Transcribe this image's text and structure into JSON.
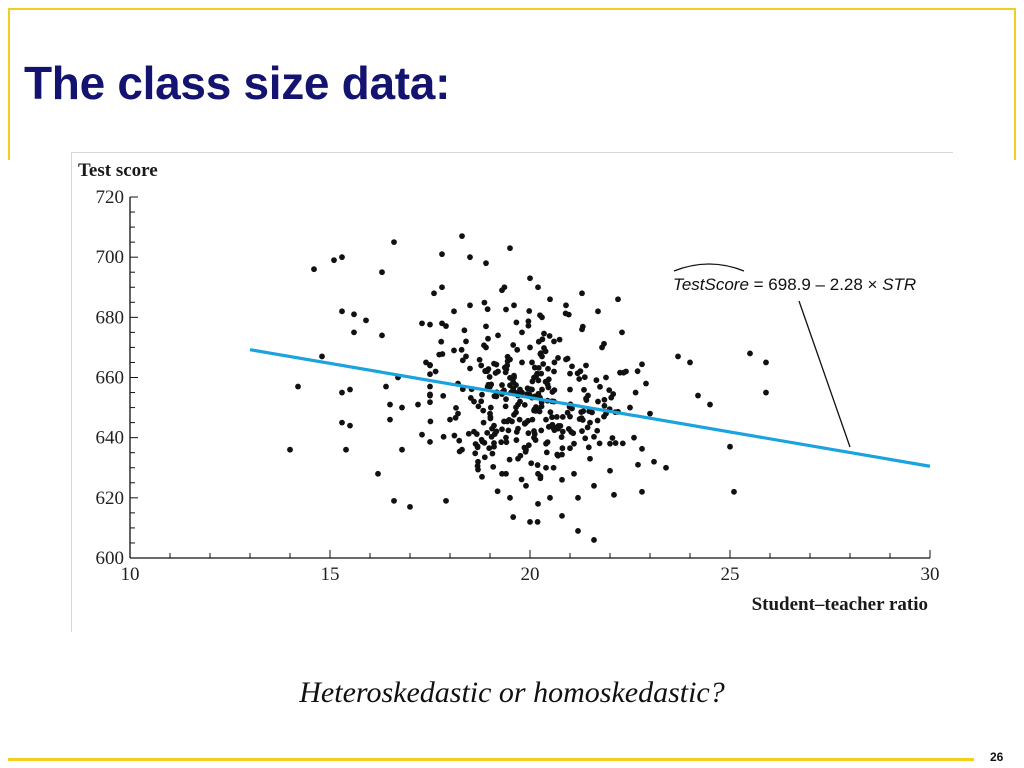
{
  "slide": {
    "title": "The class size data:",
    "question": "Heteroskedastic or homoskedastic?",
    "page_number": "26",
    "accent_color": "#f2cf1f",
    "title_color": "#141470"
  },
  "chart_data": {
    "type": "scatter",
    "title": "",
    "ylabel": "Test score",
    "xlabel": "Student–teacher ratio",
    "xlim": [
      10,
      30
    ],
    "ylim": [
      600,
      720
    ],
    "xticks": [
      10,
      15,
      20,
      25,
      30
    ],
    "yticks": [
      600,
      620,
      640,
      660,
      680,
      700,
      720
    ],
    "grid": false,
    "annotation": {
      "lhs": "TestScore",
      "rhs_a": " = 698.9 – 2.28 × ",
      "rhs_b": "STR"
    },
    "regression": {
      "intercept": 698.9,
      "slope": -2.28,
      "x_start": 13.0,
      "x_end": 30.0,
      "color": "#1aa3dd"
    },
    "point_color": "#111111",
    "points": [
      [
        14.0,
        636
      ],
      [
        14.2,
        657
      ],
      [
        14.6,
        696
      ],
      [
        14.8,
        667
      ],
      [
        15.1,
        699
      ],
      [
        15.3,
        700
      ],
      [
        15.3,
        682
      ],
      [
        15.3,
        655
      ],
      [
        15.3,
        645
      ],
      [
        15.4,
        636
      ],
      [
        15.5,
        644
      ],
      [
        15.5,
        656
      ],
      [
        15.6,
        681
      ],
      [
        15.6,
        675
      ],
      [
        15.9,
        679
      ],
      [
        16.2,
        628
      ],
      [
        16.3,
        695
      ],
      [
        16.3,
        674
      ],
      [
        16.4,
        657
      ],
      [
        16.5,
        651
      ],
      [
        16.5,
        646
      ],
      [
        16.6,
        705
      ],
      [
        16.6,
        619
      ],
      [
        16.7,
        660
      ],
      [
        16.8,
        636
      ],
      [
        16.8,
        650
      ],
      [
        17.0,
        617
      ],
      [
        17.2,
        651
      ],
      [
        17.3,
        641
      ],
      [
        17.3,
        678
      ],
      [
        17.4,
        665
      ],
      [
        17.5,
        654
      ],
      [
        17.6,
        688
      ],
      [
        17.8,
        701
      ],
      [
        17.8,
        690
      ],
      [
        17.8,
        678
      ],
      [
        17.9,
        619
      ],
      [
        18.0,
        646
      ],
      [
        18.1,
        682
      ],
      [
        18.1,
        669
      ],
      [
        18.2,
        658
      ],
      [
        18.2,
        648
      ],
      [
        18.3,
        707
      ],
      [
        18.3,
        636
      ],
      [
        18.4,
        667
      ],
      [
        18.5,
        700
      ],
      [
        18.5,
        684
      ],
      [
        18.5,
        663
      ],
      [
        18.6,
        652
      ],
      [
        18.6,
        642
      ],
      [
        18.7,
        632
      ],
      [
        18.8,
        627
      ],
      [
        18.9,
        698
      ],
      [
        18.9,
        677
      ],
      [
        18.9,
        670
      ],
      [
        19.0,
        657
      ],
      [
        19.0,
        648
      ],
      [
        19.1,
        644
      ],
      [
        19.1,
        637
      ],
      [
        19.2,
        662
      ],
      [
        19.2,
        674
      ],
      [
        19.3,
        689
      ],
      [
        19.3,
        655
      ],
      [
        19.4,
        640
      ],
      [
        19.4,
        628
      ],
      [
        19.5,
        620
      ],
      [
        19.5,
        703
      ],
      [
        19.5,
        666
      ],
      [
        19.6,
        684
      ],
      [
        19.6,
        660
      ],
      [
        19.7,
        651
      ],
      [
        19.7,
        643
      ],
      [
        19.7,
        633
      ],
      [
        19.8,
        675
      ],
      [
        19.8,
        665
      ],
      [
        19.8,
        655
      ],
      [
        19.9,
        645
      ],
      [
        19.9,
        636
      ],
      [
        19.9,
        624
      ],
      [
        20.0,
        612
      ],
      [
        20.0,
        693
      ],
      [
        20.0,
        670
      ],
      [
        20.1,
        660
      ],
      [
        20.1,
        649
      ],
      [
        20.1,
        640
      ],
      [
        20.2,
        628
      ],
      [
        20.2,
        618
      ],
      [
        20.2,
        690
      ],
      [
        20.3,
        680
      ],
      [
        20.3,
        667
      ],
      [
        20.3,
        656
      ],
      [
        20.4,
        646
      ],
      [
        20.4,
        638
      ],
      [
        20.4,
        630
      ],
      [
        20.5,
        620
      ],
      [
        20.5,
        686
      ],
      [
        20.6,
        672
      ],
      [
        20.6,
        662
      ],
      [
        20.6,
        652
      ],
      [
        20.7,
        643
      ],
      [
        20.7,
        634
      ],
      [
        20.8,
        626
      ],
      [
        20.8,
        614
      ],
      [
        20.9,
        684
      ],
      [
        20.9,
        666
      ],
      [
        21.0,
        656
      ],
      [
        21.0,
        647
      ],
      [
        21.1,
        638
      ],
      [
        21.1,
        628
      ],
      [
        21.2,
        620
      ],
      [
        21.2,
        609
      ],
      [
        21.3,
        688
      ],
      [
        21.3,
        676
      ],
      [
        21.4,
        664
      ],
      [
        21.4,
        653
      ],
      [
        21.5,
        645
      ],
      [
        21.5,
        633
      ],
      [
        21.6,
        624
      ],
      [
        21.6,
        606
      ],
      [
        21.7,
        682
      ],
      [
        21.8,
        670
      ],
      [
        21.9,
        660
      ],
      [
        21.9,
        648
      ],
      [
        22.0,
        638
      ],
      [
        22.0,
        629
      ],
      [
        22.1,
        621
      ],
      [
        22.2,
        686
      ],
      [
        22.3,
        675
      ],
      [
        22.4,
        662
      ],
      [
        22.5,
        650
      ],
      [
        22.6,
        640
      ],
      [
        22.7,
        631
      ],
      [
        22.8,
        622
      ],
      [
        22.9,
        658
      ],
      [
        23.0,
        648
      ],
      [
        23.1,
        632
      ],
      [
        23.4,
        630
      ],
      [
        23.7,
        667
      ],
      [
        24.0,
        665
      ],
      [
        24.2,
        654
      ],
      [
        24.5,
        651
      ],
      [
        25.0,
        637
      ],
      [
        25.1,
        622
      ],
      [
        25.5,
        668
      ],
      [
        25.9,
        665
      ],
      [
        25.9,
        655
      ]
    ],
    "cloud": {
      "seed": 20240613,
      "count": 270,
      "center": [
        19.95,
        652
      ],
      "spread": [
        1.15,
        14
      ]
    }
  }
}
